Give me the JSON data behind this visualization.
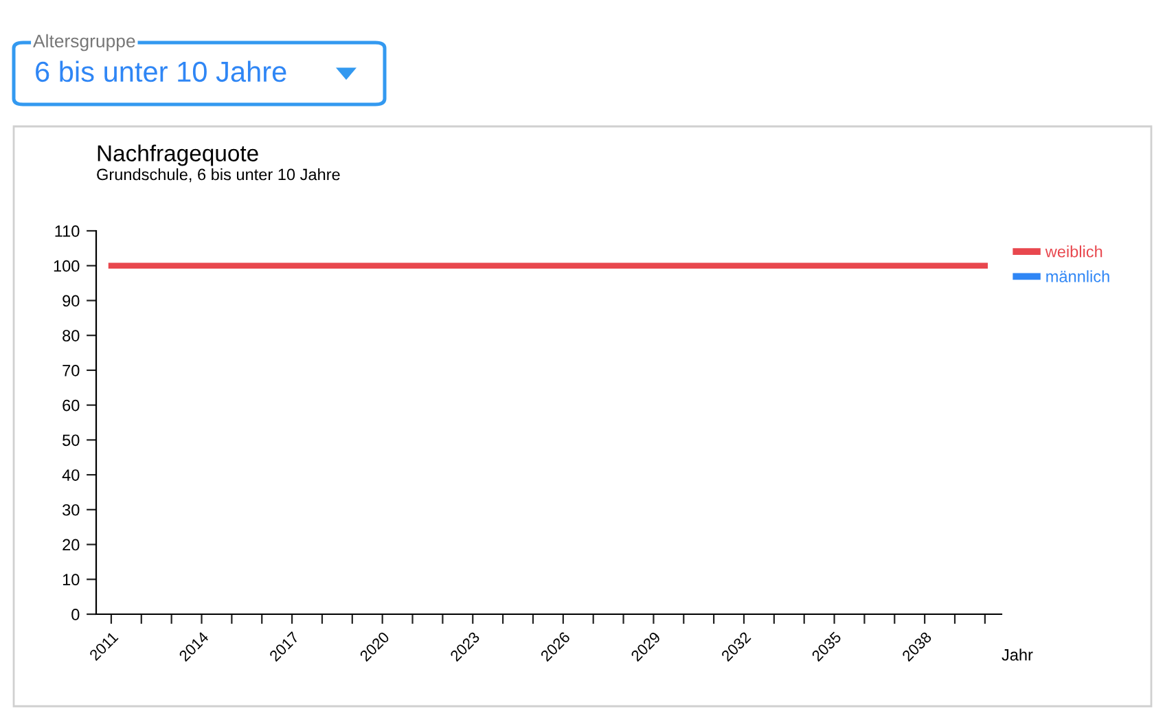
{
  "chart_data": {
    "type": "line",
    "title": "Nachfragequote",
    "subtitle": "Grundschule, 6 bis unter 10 Jahre",
    "xlabel": "Jahr",
    "annotations": [
      "Altersgruppe",
      "6 bis unter 10 Jahre"
    ],
    "x": [
      2011,
      2040
    ],
    "series": [
      {
        "name": "weiblich",
        "color": "#e8474e",
        "values": [
          100,
          100
        ]
      },
      {
        "name": "männlich",
        "color": "#2f86f5",
        "values": [
          null,
          null
        ]
      }
    ],
    "xlim": [
      2010.5,
      2040.55
    ],
    "xticks": [
      2011,
      {
        "value": 2012,
        "label": null
      },
      {
        "value": 2013,
        "label": null
      },
      2014,
      {
        "value": 2015,
        "label": null
      },
      {
        "value": 2016,
        "label": null
      },
      2017,
      {
        "value": 2018,
        "label": null
      },
      {
        "value": 2019,
        "label": null
      },
      2020,
      {
        "value": 2021,
        "label": null
      },
      {
        "value": 2022,
        "label": null
      },
      2023,
      {
        "value": 2024,
        "label": null
      },
      {
        "value": 2025,
        "label": null
      },
      2026,
      {
        "value": 2027,
        "label": null
      },
      {
        "value": 2028,
        "label": null
      },
      2029,
      {
        "value": 2030,
        "label": null
      },
      {
        "value": 2031,
        "label": null
      },
      2032,
      {
        "value": 2033,
        "label": null
      },
      {
        "value": 2034,
        "label": null
      },
      2035,
      {
        "value": 2036,
        "label": null
      },
      {
        "value": 2037,
        "label": null
      },
      2038,
      {
        "value": 2039,
        "label": null
      },
      {
        "value": 2040,
        "label": null
      }
    ],
    "ylim": [
      0,
      110
    ],
    "yticks": [
      0,
      10,
      20,
      30,
      40,
      50,
      60,
      70,
      80,
      90,
      100,
      110
    ],
    "grid": false,
    "legend": "top right",
    "marker": "none",
    "line_style": "solid"
  }
}
